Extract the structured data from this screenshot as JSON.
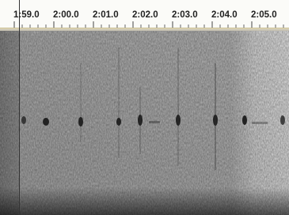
{
  "ruler": {
    "labels": [
      "1:59.0",
      "2:00.0",
      "2:01.0",
      "2:02.0",
      "2:03.0",
      "2:04.0",
      "2:05.0"
    ]
  }
}
